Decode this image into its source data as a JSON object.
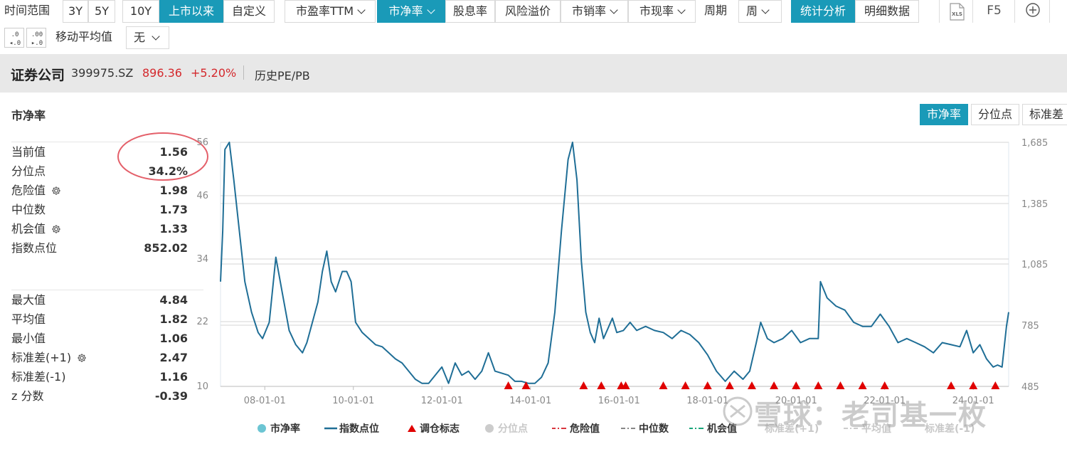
{
  "toolbar": {
    "time_range_label": "时间范围",
    "range_buttons": [
      "3Y",
      "5Y",
      "10Y",
      "上市以来",
      "自定义"
    ],
    "active_range": "上市以来",
    "metric_buttons": [
      "市盈率TTM",
      "市净率",
      "股息率",
      "风险溢价",
      "市销率",
      "市现率"
    ],
    "active_metric": "市净率",
    "period_label": "周期",
    "period_value": "周",
    "view_buttons": [
      "统计分析",
      "明细数据"
    ],
    "active_view": "统计分析",
    "xls_label": "XLS",
    "f5_label": "F5",
    "ma_label": "移动平均值",
    "ma_value": "无"
  },
  "header": {
    "name": "证券公司",
    "code": "399975.SZ",
    "price": "896.36",
    "change": "+5.20%",
    "link": "历史PE/PB"
  },
  "panel": {
    "title": "市净率",
    "stats_top": [
      {
        "label": "当前值",
        "value": "1.56",
        "gear": false
      },
      {
        "label": "分位点",
        "value": "34.2%",
        "gear": false
      },
      {
        "label": "危险值",
        "value": "1.98",
        "gear": true
      },
      {
        "label": "中位数",
        "value": "1.73",
        "gear": false
      },
      {
        "label": "机会值",
        "value": "1.33",
        "gear": true
      },
      {
        "label": "指数点位",
        "value": "852.02",
        "gear": false
      }
    ],
    "stats_bottom": [
      {
        "label": "最大值",
        "value": "4.84",
        "gear": false
      },
      {
        "label": "平均值",
        "value": "1.82",
        "gear": false
      },
      {
        "label": "最小值",
        "value": "1.06",
        "gear": false
      },
      {
        "label": "标准差(+1)",
        "value": "2.47",
        "gear": true
      },
      {
        "label": "标准差(-1)",
        "value": "1.16",
        "gear": false
      },
      {
        "label": "z 分数",
        "value": "-0.39",
        "gear": false
      }
    ],
    "tabs": [
      "市净率",
      "分位点",
      "标准差"
    ],
    "active_tab": "市净率"
  },
  "chart_data": {
    "type": "line",
    "x_ticks": [
      "08-01-01",
      "10-01-01",
      "12-01-01",
      "14-01-01",
      "16-01-01",
      "18-01-01",
      "20-01-01",
      "22-01-01",
      "24-01-01"
    ],
    "left_ticks": [
      "56",
      "46",
      "34",
      "22",
      "10"
    ],
    "right_ticks": [
      "1,685",
      "1,385",
      "1,085",
      "785",
      "485"
    ],
    "right_ylim": [
      485,
      1685
    ],
    "series": [
      {
        "name": "指数点位",
        "color": "#1f6e96",
        "x": [
          2007.0,
          2007.05,
          2007.1,
          2007.2,
          2007.3,
          2007.45,
          2007.55,
          2007.7,
          2007.85,
          2007.95,
          2008.1,
          2008.25,
          2008.4,
          2008.55,
          2008.7,
          2008.85,
          2008.95,
          2009.05,
          2009.2,
          2009.3,
          2009.4,
          2009.5,
          2009.6,
          2009.75,
          2009.85,
          2009.95,
          2010.05,
          2010.2,
          2010.35,
          2010.5,
          2010.65,
          2010.8,
          2010.95,
          2011.1,
          2011.25,
          2011.4,
          2011.55,
          2011.7,
          2011.85,
          2012.0,
          2012.15,
          2012.3,
          2012.45,
          2012.6,
          2012.75,
          2012.9,
          2013.05,
          2013.2,
          2013.35,
          2013.5,
          2013.65,
          2013.8,
          2013.95,
          2014.1,
          2014.25,
          2014.4,
          2014.55,
          2014.7,
          2014.85,
          2014.95,
          2015.05,
          2015.15,
          2015.25,
          2015.35,
          2015.45,
          2015.55,
          2015.65,
          2015.75,
          2015.85,
          2015.95,
          2016.1,
          2016.25,
          2016.4,
          2016.6,
          2016.8,
          2017.0,
          2017.2,
          2017.4,
          2017.6,
          2017.8,
          2018.0,
          2018.2,
          2018.4,
          2018.6,
          2018.8,
          2018.95,
          2019.1,
          2019.2,
          2019.35,
          2019.5,
          2019.7,
          2019.9,
          2020.1,
          2020.3,
          2020.5,
          2020.55,
          2020.7,
          2020.9,
          2021.1,
          2021.3,
          2021.5,
          2021.7,
          2021.9,
          2022.1,
          2022.3,
          2022.5,
          2022.7,
          2022.9,
          2023.1,
          2023.3,
          2023.5,
          2023.7,
          2023.85,
          2024.0,
          2024.15,
          2024.3,
          2024.45,
          2024.55,
          2024.65,
          2024.75,
          2024.8
        ],
        "y": [
          1000,
          1250,
          1650,
          1685,
          1500,
          1200,
          1000,
          850,
          750,
          720,
          800,
          1120,
          940,
          760,
          690,
          650,
          700,
          780,
          900,
          1050,
          1150,
          1000,
          950,
          1050,
          1050,
          1000,
          800,
          750,
          720,
          690,
          680,
          650,
          620,
          600,
          560,
          520,
          500,
          500,
          540,
          580,
          500,
          600,
          540,
          560,
          520,
          560,
          650,
          560,
          550,
          540,
          510,
          510,
          500,
          500,
          530,
          600,
          850,
          1250,
          1600,
          1685,
          1500,
          1100,
          850,
          750,
          700,
          820,
          720,
          770,
          820,
          750,
          760,
          800,
          760,
          780,
          760,
          750,
          720,
          760,
          740,
          700,
          640,
          560,
          510,
          560,
          520,
          560,
          700,
          800,
          720,
          700,
          720,
          760,
          700,
          720,
          720,
          1000,
          920,
          880,
          860,
          800,
          780,
          780,
          840,
          780,
          700,
          720,
          700,
          680,
          650,
          700,
          690,
          680,
          760,
          650,
          690,
          620,
          580,
          590,
          580,
          780,
          850
        ]
      }
    ],
    "markers_x": [
      2013.5,
      2013.9,
      2015.2,
      2015.6,
      2016.05,
      2016.15,
      2017.0,
      2017.5,
      2018.0,
      2018.5,
      2019.0,
      2019.5,
      2020.0,
      2020.5,
      2021.0,
      2021.5,
      2022.0,
      2023.5,
      2024.0,
      2024.5
    ],
    "legend": [
      {
        "label": "市净率",
        "kind": "dot",
        "color": "#6cc5d3",
        "dim": false
      },
      {
        "label": "指数点位",
        "kind": "line",
        "color": "#1f6e96",
        "dim": false
      },
      {
        "label": "调仓标志",
        "kind": "triangle",
        "color": "#e00000",
        "dim": false
      },
      {
        "label": "分位点",
        "kind": "dot",
        "color": "#cccccc",
        "dim": true
      },
      {
        "label": "危险值",
        "kind": "dashdot",
        "color": "#d9363e",
        "dim": false
      },
      {
        "label": "中位数",
        "kind": "dash",
        "color": "#888888",
        "dim": false
      },
      {
        "label": "机会值",
        "kind": "dashdot",
        "color": "#1aa67a",
        "dim": false
      },
      {
        "label": "标准差(+1)",
        "kind": "none",
        "color": "#cccccc",
        "dim": true
      },
      {
        "label": "平均值",
        "kind": "dash",
        "color": "#cccccc",
        "dim": true
      },
      {
        "label": "标准差(-1)",
        "kind": "none",
        "color": "#cccccc",
        "dim": true
      }
    ]
  },
  "watermark": "雪球：老司基一枚"
}
